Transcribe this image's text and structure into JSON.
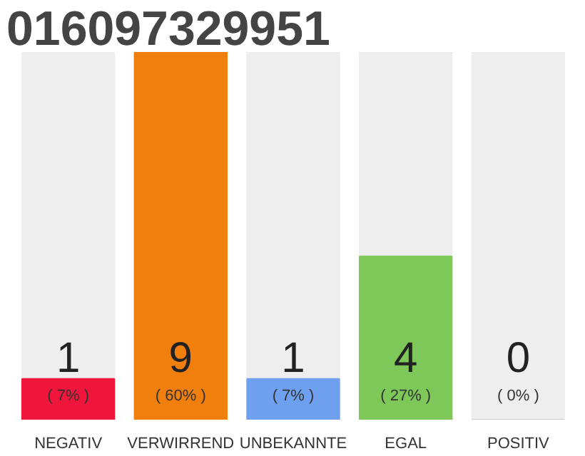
{
  "chart_data": {
    "type": "bar",
    "title": "016097329951",
    "categories": [
      "NEGATIV",
      "VERWIRREND",
      "UNBEKANNTE",
      "EGAL",
      "POSITIV"
    ],
    "values": [
      1,
      9,
      1,
      4,
      0
    ],
    "colors": [
      "#f0163b",
      "#f07f0d",
      "#6ea0ef",
      "#7ec85a",
      "#cccccc"
    ],
    "data_labels": true,
    "annotations": [
      "( 7% )",
      "( 60% )",
      "( 7% )",
      "( 27% )",
      "( 0% )"
    ],
    "ylim": [
      0,
      9
    ],
    "tick_labels": "x",
    "grid": false
  }
}
